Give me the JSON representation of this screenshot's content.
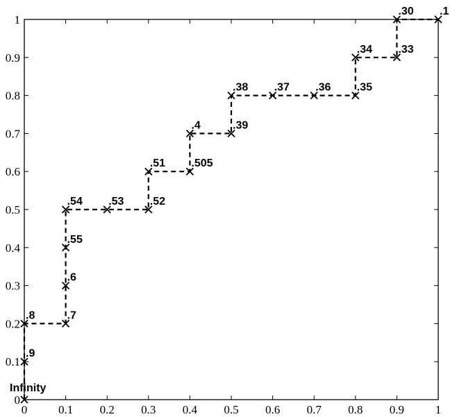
{
  "chart_data": {
    "type": "line",
    "title": "",
    "xlabel": "",
    "ylabel": "",
    "xlim": [
      0,
      1
    ],
    "ylim": [
      0,
      1
    ],
    "xticks": [
      "0",
      "0.1",
      "0.2",
      "0.3",
      "0.4",
      "0.5",
      "0.6",
      "0.7",
      "0.8",
      "0.9",
      "1"
    ],
    "yticks": [
      "0",
      "0.1",
      "0.2",
      "0.3",
      "0.4",
      "0.5",
      "0.6",
      "0.7",
      "0.8",
      "0.9",
      "1"
    ],
    "grid": false,
    "legend": "none",
    "line_style": "dashed-step",
    "marker": "x",
    "color": "#000000",
    "points": [
      {
        "x": 0.0,
        "y": 0.0,
        "label": "Infinity"
      },
      {
        "x": 0.0,
        "y": 0.1,
        "label": ".9"
      },
      {
        "x": 0.0,
        "y": 0.2,
        "label": ".8"
      },
      {
        "x": 0.1,
        "y": 0.2,
        "label": ".7"
      },
      {
        "x": 0.1,
        "y": 0.3,
        "label": ".6"
      },
      {
        "x": 0.1,
        "y": 0.4,
        "label": ".55"
      },
      {
        "x": 0.1,
        "y": 0.5,
        "label": ".54"
      },
      {
        "x": 0.2,
        "y": 0.5,
        "label": ".53"
      },
      {
        "x": 0.3,
        "y": 0.5,
        "label": ".52"
      },
      {
        "x": 0.3,
        "y": 0.6,
        "label": ".51"
      },
      {
        "x": 0.4,
        "y": 0.6,
        "label": ".505"
      },
      {
        "x": 0.4,
        "y": 0.7,
        "label": ".4"
      },
      {
        "x": 0.5,
        "y": 0.7,
        "label": ".39"
      },
      {
        "x": 0.5,
        "y": 0.8,
        "label": ".38"
      },
      {
        "x": 0.6,
        "y": 0.8,
        "label": ".37"
      },
      {
        "x": 0.7,
        "y": 0.8,
        "label": ".36"
      },
      {
        "x": 0.8,
        "y": 0.8,
        "label": ".35"
      },
      {
        "x": 0.8,
        "y": 0.9,
        "label": ".34"
      },
      {
        "x": 0.9,
        "y": 0.9,
        "label": ".33"
      },
      {
        "x": 0.9,
        "y": 1.0,
        "label": ".30"
      },
      {
        "x": 1.0,
        "y": 1.0,
        "label": ".1"
      }
    ]
  }
}
